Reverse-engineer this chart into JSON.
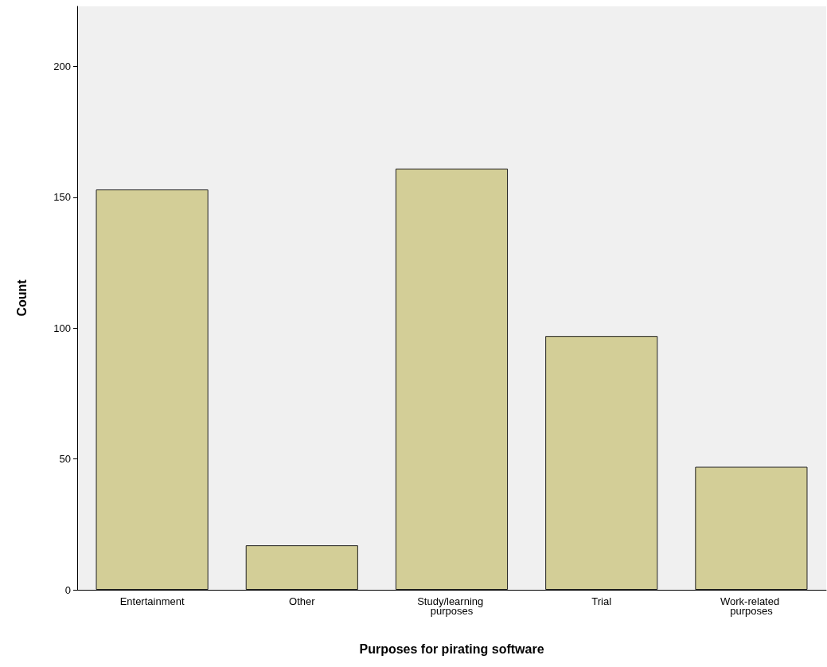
{
  "chart_data": {
    "type": "bar",
    "xlabel": "Purposes for pirating software",
    "ylabel": "Count",
    "categories": [
      "Entertainment",
      "Other",
      "Study/learning purposes",
      "Trial",
      "Work-related purposes"
    ],
    "values": [
      153,
      17,
      161,
      97,
      47
    ],
    "color": "#d3ce97",
    "ylim": [
      0,
      223
    ],
    "yticks": [
      0,
      50,
      100,
      150,
      200
    ]
  }
}
